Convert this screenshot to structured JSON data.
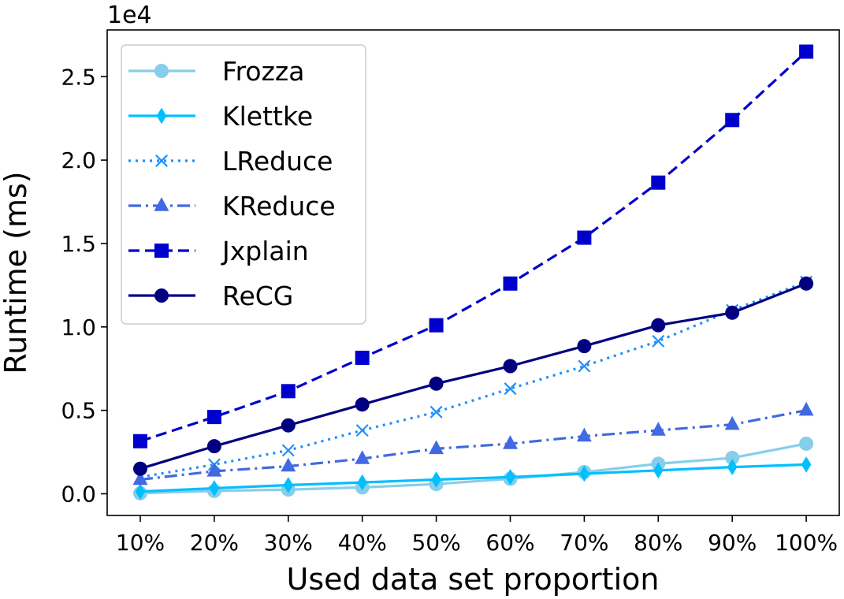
{
  "chart_data": {
    "type": "line",
    "xlabel": "Used data set proportion",
    "ylabel": "Runtime (ms)",
    "y_offset_label": "1e4",
    "categories": [
      "10%",
      "20%",
      "30%",
      "40%",
      "50%",
      "60%",
      "70%",
      "80%",
      "90%",
      "100%"
    ],
    "yticks": [
      0.0,
      0.5,
      1.0,
      1.5,
      2.0,
      2.5
    ],
    "ytick_labels": [
      "0.0",
      "0.5",
      "1.0",
      "1.5",
      "2.0",
      "2.5"
    ],
    "ylim": [
      -0.13,
      2.78
    ],
    "grid": false,
    "legend_position": "top-left",
    "series": [
      {
        "name": "Frozza",
        "color": "#87ceeb",
        "marker": "circle",
        "linestyle": "solid",
        "values": [
          0.003,
          0.017,
          0.025,
          0.038,
          0.058,
          0.09,
          0.13,
          0.18,
          0.215,
          0.3
        ]
      },
      {
        "name": "Klettke",
        "color": "#00bfff",
        "marker": "thin-diamond",
        "linestyle": "solid",
        "values": [
          0.013,
          0.033,
          0.052,
          0.068,
          0.085,
          0.1,
          0.12,
          0.14,
          0.16,
          0.175
        ]
      },
      {
        "name": "LReduce",
        "color": "#1e90ff",
        "marker": "x",
        "linestyle": "dotted",
        "values": [
          0.1,
          0.175,
          0.26,
          0.38,
          0.49,
          0.63,
          0.765,
          0.915,
          1.1,
          1.27
        ]
      },
      {
        "name": "KReduce",
        "color": "#4169e1",
        "marker": "triangle",
        "linestyle": "dashdot",
        "values": [
          0.085,
          0.135,
          0.165,
          0.21,
          0.27,
          0.3,
          0.345,
          0.38,
          0.415,
          0.5
        ]
      },
      {
        "name": "Jxplain",
        "color": "#0000cd",
        "marker": "square",
        "linestyle": "dashed",
        "values": [
          0.315,
          0.46,
          0.615,
          0.815,
          1.01,
          1.26,
          1.535,
          1.865,
          2.24,
          2.65
        ]
      },
      {
        "name": "ReCG",
        "color": "#000080",
        "marker": "circle",
        "linestyle": "solid",
        "values": [
          0.15,
          0.285,
          0.41,
          0.535,
          0.66,
          0.765,
          0.885,
          1.01,
          1.085,
          1.26
        ]
      }
    ]
  }
}
